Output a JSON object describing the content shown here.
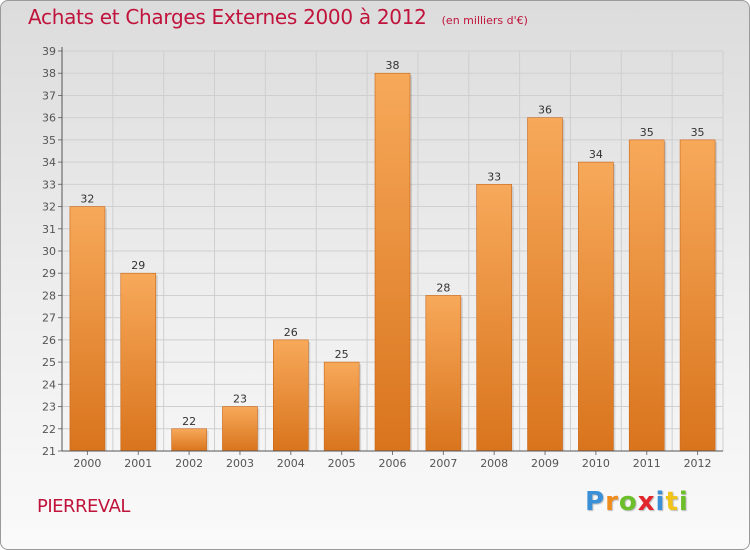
{
  "chart_data": {
    "type": "bar",
    "title": "Achats et Charges Externes 2000 à 2012",
    "subtitle": "(en milliers d'€)",
    "categories": [
      "2000",
      "2001",
      "2002",
      "2003",
      "2004",
      "2005",
      "2006",
      "2007",
      "2008",
      "2009",
      "2010",
      "2011",
      "2012"
    ],
    "values": [
      32,
      29,
      22,
      23,
      26,
      25,
      38,
      28,
      33,
      36,
      34,
      35,
      35
    ],
    "ylim": [
      21,
      39
    ],
    "yticks": [
      21,
      22,
      23,
      24,
      25,
      26,
      27,
      28,
      29,
      30,
      31,
      32,
      33,
      34,
      35,
      36,
      37,
      38,
      39
    ],
    "grid": true,
    "bar_color": "#f0923a",
    "xlabel": "",
    "ylabel": ""
  },
  "location": "PIERREVAL",
  "brand": {
    "letters": [
      "P",
      "r",
      "o",
      "x",
      "i",
      "t",
      "i"
    ],
    "colors": [
      "#3a8fd6",
      "#f08c1e",
      "#6cbf2a",
      "#e3262c",
      "#3a8fd6",
      "#f0c419",
      "#6cbf2a"
    ]
  },
  "colors": {
    "title": "#c0143c",
    "axis": "#555555",
    "grid": "#cfcfcf"
  }
}
